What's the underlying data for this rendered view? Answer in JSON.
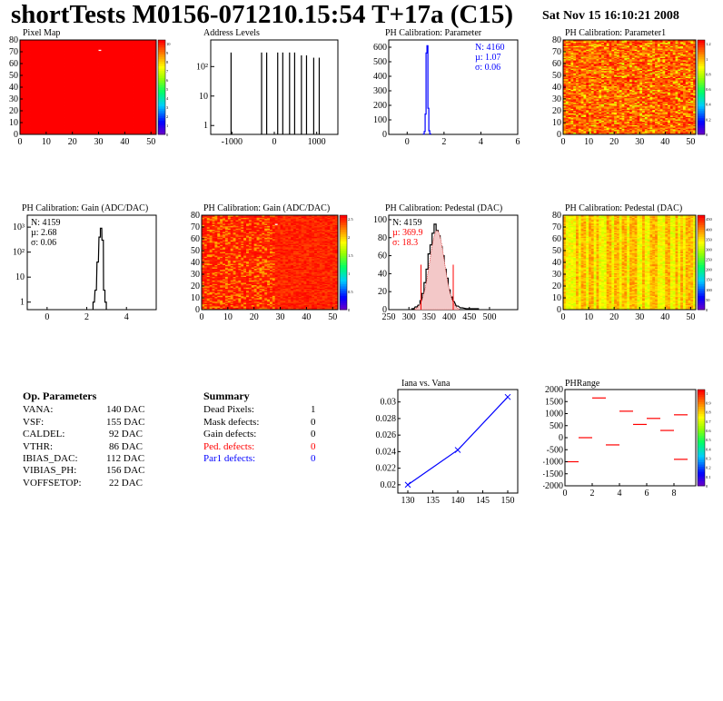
{
  "header": {
    "title": "shortTests M0156-071210.15:54 T+17a (C15)",
    "date": "Sat Nov 15 16:10:21 2008"
  },
  "colors": {
    "red": "#ff0000",
    "blue": "#0000ff",
    "black": "#000000"
  },
  "chart_data": [
    {
      "id": "pixel-map",
      "type": "heatmap",
      "title": "Pixel Map",
      "xlim": [
        0,
        52
      ],
      "ylim": [
        0,
        80
      ],
      "x_ticks": [
        "0",
        "10",
        "20",
        "30",
        "40",
        "50"
      ],
      "y_ticks": [
        "0",
        "10",
        "20",
        "30",
        "40",
        "50",
        "60",
        "70",
        "80"
      ],
      "z_ticks": [
        "0",
        "1",
        "2",
        "3",
        "4",
        "5",
        "6",
        "7",
        "8",
        "9",
        "10"
      ],
      "uniform_value": 10,
      "note_cells": [
        {
          "x": 30,
          "y": 71,
          "value": 0
        }
      ]
    },
    {
      "id": "address-levels",
      "type": "bar",
      "title": "Address Levels",
      "log_y": true,
      "xlim": [
        -1500,
        1500
      ],
      "x_ticks": [
        "-1000",
        "0",
        "1000"
      ],
      "y_ticks": [
        "1",
        "10",
        "10²"
      ],
      "spikes": [
        {
          "x": -1020,
          "value": 300
        },
        {
          "x": -300,
          "value": 300
        },
        {
          "x": -180,
          "value": 300
        },
        {
          "x": 80,
          "value": 300
        },
        {
          "x": 200,
          "value": 300
        },
        {
          "x": 360,
          "value": 300
        },
        {
          "x": 480,
          "value": 300
        },
        {
          "x": 640,
          "value": 240
        },
        {
          "x": 760,
          "value": 240
        },
        {
          "x": 930,
          "value": 200
        },
        {
          "x": 1060,
          "value": 200
        }
      ]
    },
    {
      "id": "ph-calib-parameter",
      "type": "bar",
      "title": "PH Calibration: Parameter",
      "xlim": [
        -1,
        6
      ],
      "ylim": [
        0,
        650
      ],
      "x_ticks": [
        "0",
        "2",
        "4",
        "6"
      ],
      "y_ticks": [
        "0",
        "100",
        "200",
        "300",
        "400",
        "500",
        "600"
      ],
      "stats": {
        "n": "N: 4160",
        "mu": "µ: 1.07",
        "sigma": "σ: 0.06"
      },
      "bins": [
        {
          "x": 0.9,
          "value": 2
        },
        {
          "x": 0.95,
          "value": 20
        },
        {
          "x": 1.0,
          "value": 140
        },
        {
          "x": 1.05,
          "value": 560
        },
        {
          "x": 1.1,
          "value": 610
        },
        {
          "x": 1.15,
          "value": 180
        },
        {
          "x": 1.2,
          "value": 25
        },
        {
          "x": 1.25,
          "value": 3
        }
      ]
    },
    {
      "id": "ph-calib-parameter1",
      "type": "heatmap",
      "title": "PH Calibration: Parameter1",
      "xlim": [
        0,
        52
      ],
      "ylim": [
        0,
        80
      ],
      "x_ticks": [
        "0",
        "10",
        "20",
        "30",
        "40",
        "50"
      ],
      "y_ticks": [
        "0",
        "10",
        "20",
        "30",
        "40",
        "50",
        "60",
        "70",
        "80"
      ],
      "z_ticks": [
        "0",
        "0.2",
        "0.4",
        "0.6",
        "0.8",
        "1",
        "1.2"
      ]
    },
    {
      "id": "ph-calib-gain-hist",
      "type": "bar",
      "title": "PH Calibration: Gain (ADC/DAC)",
      "log_y": true,
      "xlim": [
        -1,
        5.5
      ],
      "x_ticks": [
        "0",
        "2",
        "4"
      ],
      "y_ticks": [
        "1",
        "10",
        "10²",
        "10³"
      ],
      "stats": {
        "n": "N: 4159",
        "mu": "µ: 2.68",
        "sigma": "σ: 0.06"
      },
      "bins": [
        {
          "x": 2.35,
          "value": 1
        },
        {
          "x": 2.45,
          "value": 3
        },
        {
          "x": 2.55,
          "value": 40
        },
        {
          "x": 2.65,
          "value": 400
        },
        {
          "x": 2.72,
          "value": 900
        },
        {
          "x": 2.8,
          "value": 300
        },
        {
          "x": 2.88,
          "value": 3
        },
        {
          "x": 2.95,
          "value": 1
        }
      ]
    },
    {
      "id": "ph-calib-gain-map",
      "type": "heatmap",
      "title": "PH Calibration: Gain (ADC/DAC)",
      "xlim": [
        0,
        52
      ],
      "ylim": [
        0,
        80
      ],
      "x_ticks": [
        "0",
        "10",
        "20",
        "30",
        "40",
        "50"
      ],
      "y_ticks": [
        "0",
        "10",
        "20",
        "30",
        "40",
        "50",
        "60",
        "70",
        "80"
      ],
      "z_ticks": [
        "0",
        "0.5",
        "1",
        "1.5",
        "2",
        "2.5"
      ]
    },
    {
      "id": "ph-calib-pedestal-hist",
      "type": "bar",
      "title": "PH Calibration: Pedestal (DAC)",
      "xlim": [
        250,
        570
      ],
      "ylim": [
        0,
        105
      ],
      "x_ticks": [
        "250",
        "300",
        "350",
        "400",
        "450",
        "500"
      ],
      "y_ticks": [
        "0",
        "20",
        "40",
        "60",
        "80",
        "100"
      ],
      "stats": {
        "n": "N: 4159",
        "mu": "µ: 369.9",
        "sigma": "σ: 18.3"
      },
      "cut_lines": [
        330,
        410
      ],
      "fit_gaussian": {
        "mean": 369.9,
        "sigma": 18.3,
        "amplitude": 88
      },
      "bins": [
        {
          "x": 310,
          "value": 1
        },
        {
          "x": 318,
          "value": 3
        },
        {
          "x": 325,
          "value": 5
        },
        {
          "x": 330,
          "value": 10
        },
        {
          "x": 335,
          "value": 18
        },
        {
          "x": 340,
          "value": 30
        },
        {
          "x": 345,
          "value": 45
        },
        {
          "x": 350,
          "value": 62
        },
        {
          "x": 355,
          "value": 72
        },
        {
          "x": 360,
          "value": 85
        },
        {
          "x": 365,
          "value": 95
        },
        {
          "x": 370,
          "value": 88
        },
        {
          "x": 375,
          "value": 82
        },
        {
          "x": 380,
          "value": 70
        },
        {
          "x": 385,
          "value": 60
        },
        {
          "x": 390,
          "value": 45
        },
        {
          "x": 395,
          "value": 35
        },
        {
          "x": 400,
          "value": 22
        },
        {
          "x": 405,
          "value": 14
        },
        {
          "x": 410,
          "value": 9
        },
        {
          "x": 420,
          "value": 4
        },
        {
          "x": 430,
          "value": 2
        },
        {
          "x": 445,
          "value": 1
        },
        {
          "x": 470,
          "value": 1
        }
      ]
    },
    {
      "id": "ph-calib-pedestal-map",
      "type": "heatmap",
      "title": "PH Calibration: Pedestal (DAC)",
      "xlim": [
        0,
        52
      ],
      "ylim": [
        0,
        80
      ],
      "x_ticks": [
        "0",
        "10",
        "20",
        "30",
        "40",
        "50"
      ],
      "y_ticks": [
        "0",
        "10",
        "20",
        "30",
        "40",
        "50",
        "60",
        "70",
        "80"
      ],
      "z_ticks": [
        "0",
        "50",
        "100",
        "150",
        "200",
        "250",
        "300",
        "350",
        "400",
        "450"
      ]
    },
    {
      "id": "iana-vs-vana",
      "type": "line",
      "title": "Iana vs. Vana",
      "xlim": [
        128,
        152
      ],
      "ylim": [
        0.019,
        0.0315
      ],
      "x_ticks": [
        "130",
        "135",
        "140",
        "145",
        "150"
      ],
      "y_ticks": [
        "0.02",
        "0.022",
        "0.024",
        "0.026",
        "0.028",
        "0.03"
      ],
      "points": [
        {
          "x": 130,
          "y": 0.02
        },
        {
          "x": 140,
          "y": 0.0242
        },
        {
          "x": 150,
          "y": 0.0306
        }
      ]
    },
    {
      "id": "ph-range",
      "type": "scatter",
      "title": "PHRange",
      "xlim": [
        0,
        9.6
      ],
      "ylim": [
        -2000,
        2000
      ],
      "x_ticks": [
        "0",
        "2",
        "4",
        "6",
        "8"
      ],
      "y_ticks": [
        "2000",
        "1500",
        "1000",
        "500",
        "0",
        "-500",
        "-1000",
        "-1500",
        "-2000"
      ],
      "z_ticks": [
        "0",
        "0.1",
        "0.2",
        "0.3",
        "0.4",
        "0.5",
        "0.6",
        "0.7",
        "0.8",
        "0.9",
        "1"
      ],
      "segments": [
        {
          "x": 0,
          "y": -1000
        },
        {
          "x": 1,
          "y": 0
        },
        {
          "x": 2,
          "y": 1650
        },
        {
          "x": 3,
          "y": -300
        },
        {
          "x": 4,
          "y": 1100
        },
        {
          "x": 5,
          "y": 550
        },
        {
          "x": 6,
          "y": 800
        },
        {
          "x": 7,
          "y": 300
        },
        {
          "x": 8,
          "y": 950
        },
        {
          "x": 8,
          "y": -900
        }
      ]
    }
  ],
  "op_parameters": {
    "title": "Op. Parameters",
    "rows": [
      {
        "name": "VANA:",
        "value": "140 DAC"
      },
      {
        "name": "VSF:",
        "value": "155 DAC"
      },
      {
        "name": "CALDEL:",
        "value": "92 DAC"
      },
      {
        "name": "VTHR:",
        "value": "86 DAC"
      },
      {
        "name": "IBIAS_DAC:",
        "value": "112 DAC"
      },
      {
        "name": "VIBIAS_PH:",
        "value": "156 DAC"
      },
      {
        "name": "VOFFSETOP:",
        "value": "22 DAC"
      }
    ]
  },
  "summary": {
    "title": "Summary",
    "rows": [
      {
        "name": "Dead Pixels:",
        "value": "1",
        "color": "#000000"
      },
      {
        "name": "Mask defects:",
        "value": "0",
        "color": "#000000"
      },
      {
        "name": "Gain defects:",
        "value": "0",
        "color": "#000000"
      },
      {
        "name": "Ped. defects:",
        "value": "0",
        "color": "#ff0000"
      },
      {
        "name": "Par1 defects:",
        "value": "0",
        "color": "#0000ff"
      }
    ]
  }
}
